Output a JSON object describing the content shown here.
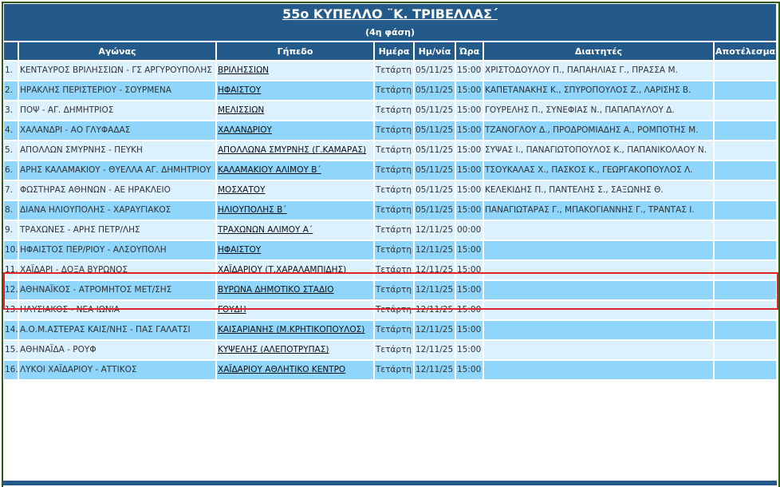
{
  "header": {
    "title": "55ο ΚΥΠΕΛΛΟ ¨Κ. ΤΡΙΒΕΛΛΑΣ΄",
    "subtitle": "(4η φάση)"
  },
  "columns": [
    "",
    "Αγώνας",
    "Γήπεδο",
    "Ημέρα",
    "Ημ/νία",
    "Ώρα",
    "Διαιτητές",
    "Αποτέλεσμα"
  ],
  "highlighted_row": 8,
  "colors": {
    "header": "#245a8a",
    "row_light": "#dcf1fe",
    "row_dark": "#8fd5fc",
    "highlight": "#e0242a"
  },
  "rows": [
    {
      "num": "1.",
      "match": "ΚΕΝΤΑΥΡΟΣ ΒΡΙΛΗΣΣΙΩΝ - ΓΣ ΑΡΓΥΡΟΥΠΟΛΗΣ",
      "venue": "ΒΡΙΛΗΣΣΙΩΝ",
      "day": "Τετάρτη",
      "date": "05/11/25",
      "time": "15:00",
      "referees": "ΧΡΙΣΤΟΔΟΥΛΟΥ Π., ΠΑΠΑΗΛΙΑΣ Γ., ΠΡΑΣΣΑ Μ.",
      "result": ""
    },
    {
      "num": "2.",
      "match": "ΗΡΑΚΛΗΣ ΠΕΡΙΣΤΕΡΙΟΥ - ΣΟΥΡΜΕΝΑ",
      "venue": "ΗΦΑΙΣΤΟΥ",
      "day": "Τετάρτη",
      "date": "05/11/25",
      "time": "15:00",
      "referees": "ΚΑΠΕΤΑΝΑΚΗΣ Κ., ΣΠΥΡΟΠΟΥΛΟΣ Ζ., ΛΑΡΙΣΗΣ Β.",
      "result": ""
    },
    {
      "num": "3.",
      "match": "ΠΟΨ - ΑΓ. ΔΗΜΗΤΡΙΟΣ",
      "venue": "ΜΕΛΙΣΣΙΩΝ",
      "day": "Τετάρτη",
      "date": "05/11/25",
      "time": "15:00",
      "referees": "ΓΟΥΡΕΛΗΣ Π., ΣΥΝΕΦΙΑΣ Ν., ΠΑΠΑΠΑΥΛΟΥ Δ.",
      "result": ""
    },
    {
      "num": "4.",
      "match": "ΧΑΛΑΝΔΡΙ - ΑΟ ΓΛΥΦΑΔΑΣ",
      "venue": "ΧΑΛΑΝΔΡΙΟΥ",
      "day": "Τετάρτη",
      "date": "05/11/25",
      "time": "15:00",
      "referees": "ΤΖΑΝΟΓΛΟΥ Δ., ΠΡΟΔΡΟΜΙΑΔΗΣ Α., ΡΟΜΠΟΤΗΣ Μ.",
      "result": ""
    },
    {
      "num": "5.",
      "match": "ΑΠΟΛΛΩΝ ΣΜΥΡΝΗΣ - ΠΕΥΚΗ",
      "venue": "ΑΠΟΛΛΩΝΑ ΣΜΥΡΝΗΣ (Γ.ΚΑΜΑΡΑΣ)",
      "day": "Τετάρτη",
      "date": "05/11/25",
      "time": "15:00",
      "referees": "ΣΥΨΑΣ Ι., ΠΑΝΑΓΙΩΤΟΠΟΥΛΟΣ Κ., ΠΑΠΑΝΙΚΟΛΑΟΥ Ν.",
      "result": ""
    },
    {
      "num": "6.",
      "match": "ΑΡΗΣ ΚΑΛΑΜΑΚΙΟΥ - ΘΥΕΛΛΑ ΑΓ. ΔΗΜΗΤΡΙΟΥ",
      "venue": "ΚΑΛΑΜΑΚΙΟΥ ΑΛΙΜΟΥ Β΄",
      "day": "Τετάρτη",
      "date": "05/11/25",
      "time": "15:00",
      "referees": "ΤΣΟΥΚΑΛΑΣ Χ., ΠΑΣΚΟΣ Κ., ΓΕΩΡΓΑΚΟΠΟΥΛΟΣ Λ.",
      "result": ""
    },
    {
      "num": "7.",
      "match": "ΦΩΣΤΗΡΑΣ ΑΘΗΝΩΝ - ΑΕ ΗΡΑΚΛΕΙΟ",
      "venue": "ΜΟΣΧΑΤΟΥ",
      "day": "Τετάρτη",
      "date": "05/11/25",
      "time": "15:00",
      "referees": "ΚΕΛΕΚΙΔΗΣ Π., ΠΑΝΤΕΛΗΣ Σ., ΣΑΞΩΝΗΣ Θ.",
      "result": ""
    },
    {
      "num": "8.",
      "match": "ΔΙΑΝΑ ΗΛΙΟΥΠΟΛΗΣ - ΧΑΡΑΥΓΙΑΚΟΣ",
      "venue": "ΗΛΙΟΥΠΟΛΗΣ Β΄",
      "day": "Τετάρτη",
      "date": "05/11/25",
      "time": "15:00",
      "referees": "ΠΑΝΑΓΙΩΤΑΡΑΣ Γ., ΜΠΑΚΟΓΙΑΝΝΗΣ Γ., ΤΡΑΝΤΑΣ Ι.",
      "result": ""
    },
    {
      "num": "9.",
      "match": "ΤΡΑΧΩΝΕΣ - ΑΡΗΣ ΠΕΤΡ/ΛΗΣ",
      "venue": "ΤΡΑΧΩΝΩΝ ΑΛΙΜΟΥ Α΄",
      "day": "Τετάρτη",
      "date": "12/11/25",
      "time": "00:00",
      "referees": "",
      "result": ""
    },
    {
      "num": "10.",
      "match": "ΗΦΑΙΣΤΟΣ ΠΕΡ/ΡΙΟΥ - ΑΛΣΟΥΠΟΛΗ",
      "venue": "ΗΦΑΙΣΤΟΥ",
      "day": "Τετάρτη",
      "date": "12/11/25",
      "time": "15:00",
      "referees": "",
      "result": ""
    },
    {
      "num": "11.",
      "match": "ΧΑΪΔΑΡΙ - ΔΟΞΑ ΒΥΡΩΝΟΣ",
      "venue": "ΧΑΪΔΑΡΙΟΥ (Τ.ΧΑΡΑΛΑΜΠΙΔΗΣ)",
      "day": "Τετάρτη",
      "date": "12/11/25",
      "time": "15:00",
      "referees": "",
      "result": ""
    },
    {
      "num": "12.",
      "match": "ΑΘΗΝΑΪΚΟΣ - ΑΤΡΟΜΗΤΟΣ ΜΕΤ/ΣΗΣ",
      "venue": "ΒΥΡΩΝΑ ΔΗΜΟΤΙΚΟ ΣΤΑΔΙΟ",
      "day": "Τετάρτη",
      "date": "12/11/25",
      "time": "15:00",
      "referees": "",
      "result": ""
    },
    {
      "num": "13.",
      "match": "ΗΛΥΣΙΑΚΟΣ - ΝΕΑ ΙΩΝΙΑ",
      "venue": "ΓΟΥΔΗ",
      "day": "Τετάρτη",
      "date": "12/11/25",
      "time": "15:00",
      "referees": "",
      "result": ""
    },
    {
      "num": "14.",
      "match": "Α.Ο.Μ.ΑΣΤΕΡΑΣ ΚΑΙΣ/ΝΗΣ - ΠΑΣ ΓΑΛΑΤΣΙ",
      "venue": "ΚΑΙΣΑΡΙΑΝΗΣ (Μ.ΚΡΗΤΙΚΟΠΟΥΛΟΣ)",
      "day": "Τετάρτη",
      "date": "12/11/25",
      "time": "15:00",
      "referees": "",
      "result": ""
    },
    {
      "num": "15.",
      "match": "ΑΘΗΝΑΪΔΑ - ΡΟΥΦ",
      "venue": "ΚΥΨΕΛΗΣ (ΑΛΕΠΟΤΡΥΠΑΣ)",
      "day": "Τετάρτη",
      "date": "12/11/25",
      "time": "15:00",
      "referees": "",
      "result": ""
    },
    {
      "num": "16.",
      "match": "ΛΥΚΟΙ ΧΑΪΔΑΡΙΟΥ - ΑΤΤΙΚΟΣ",
      "venue": "ΧΑΪΔΑΡΙΟΥ ΑΘΛΗΤΙΚΟ ΚΕΝΤΡΟ",
      "day": "Τετάρτη",
      "date": "12/11/25",
      "time": "15:00",
      "referees": "",
      "result": ""
    }
  ]
}
